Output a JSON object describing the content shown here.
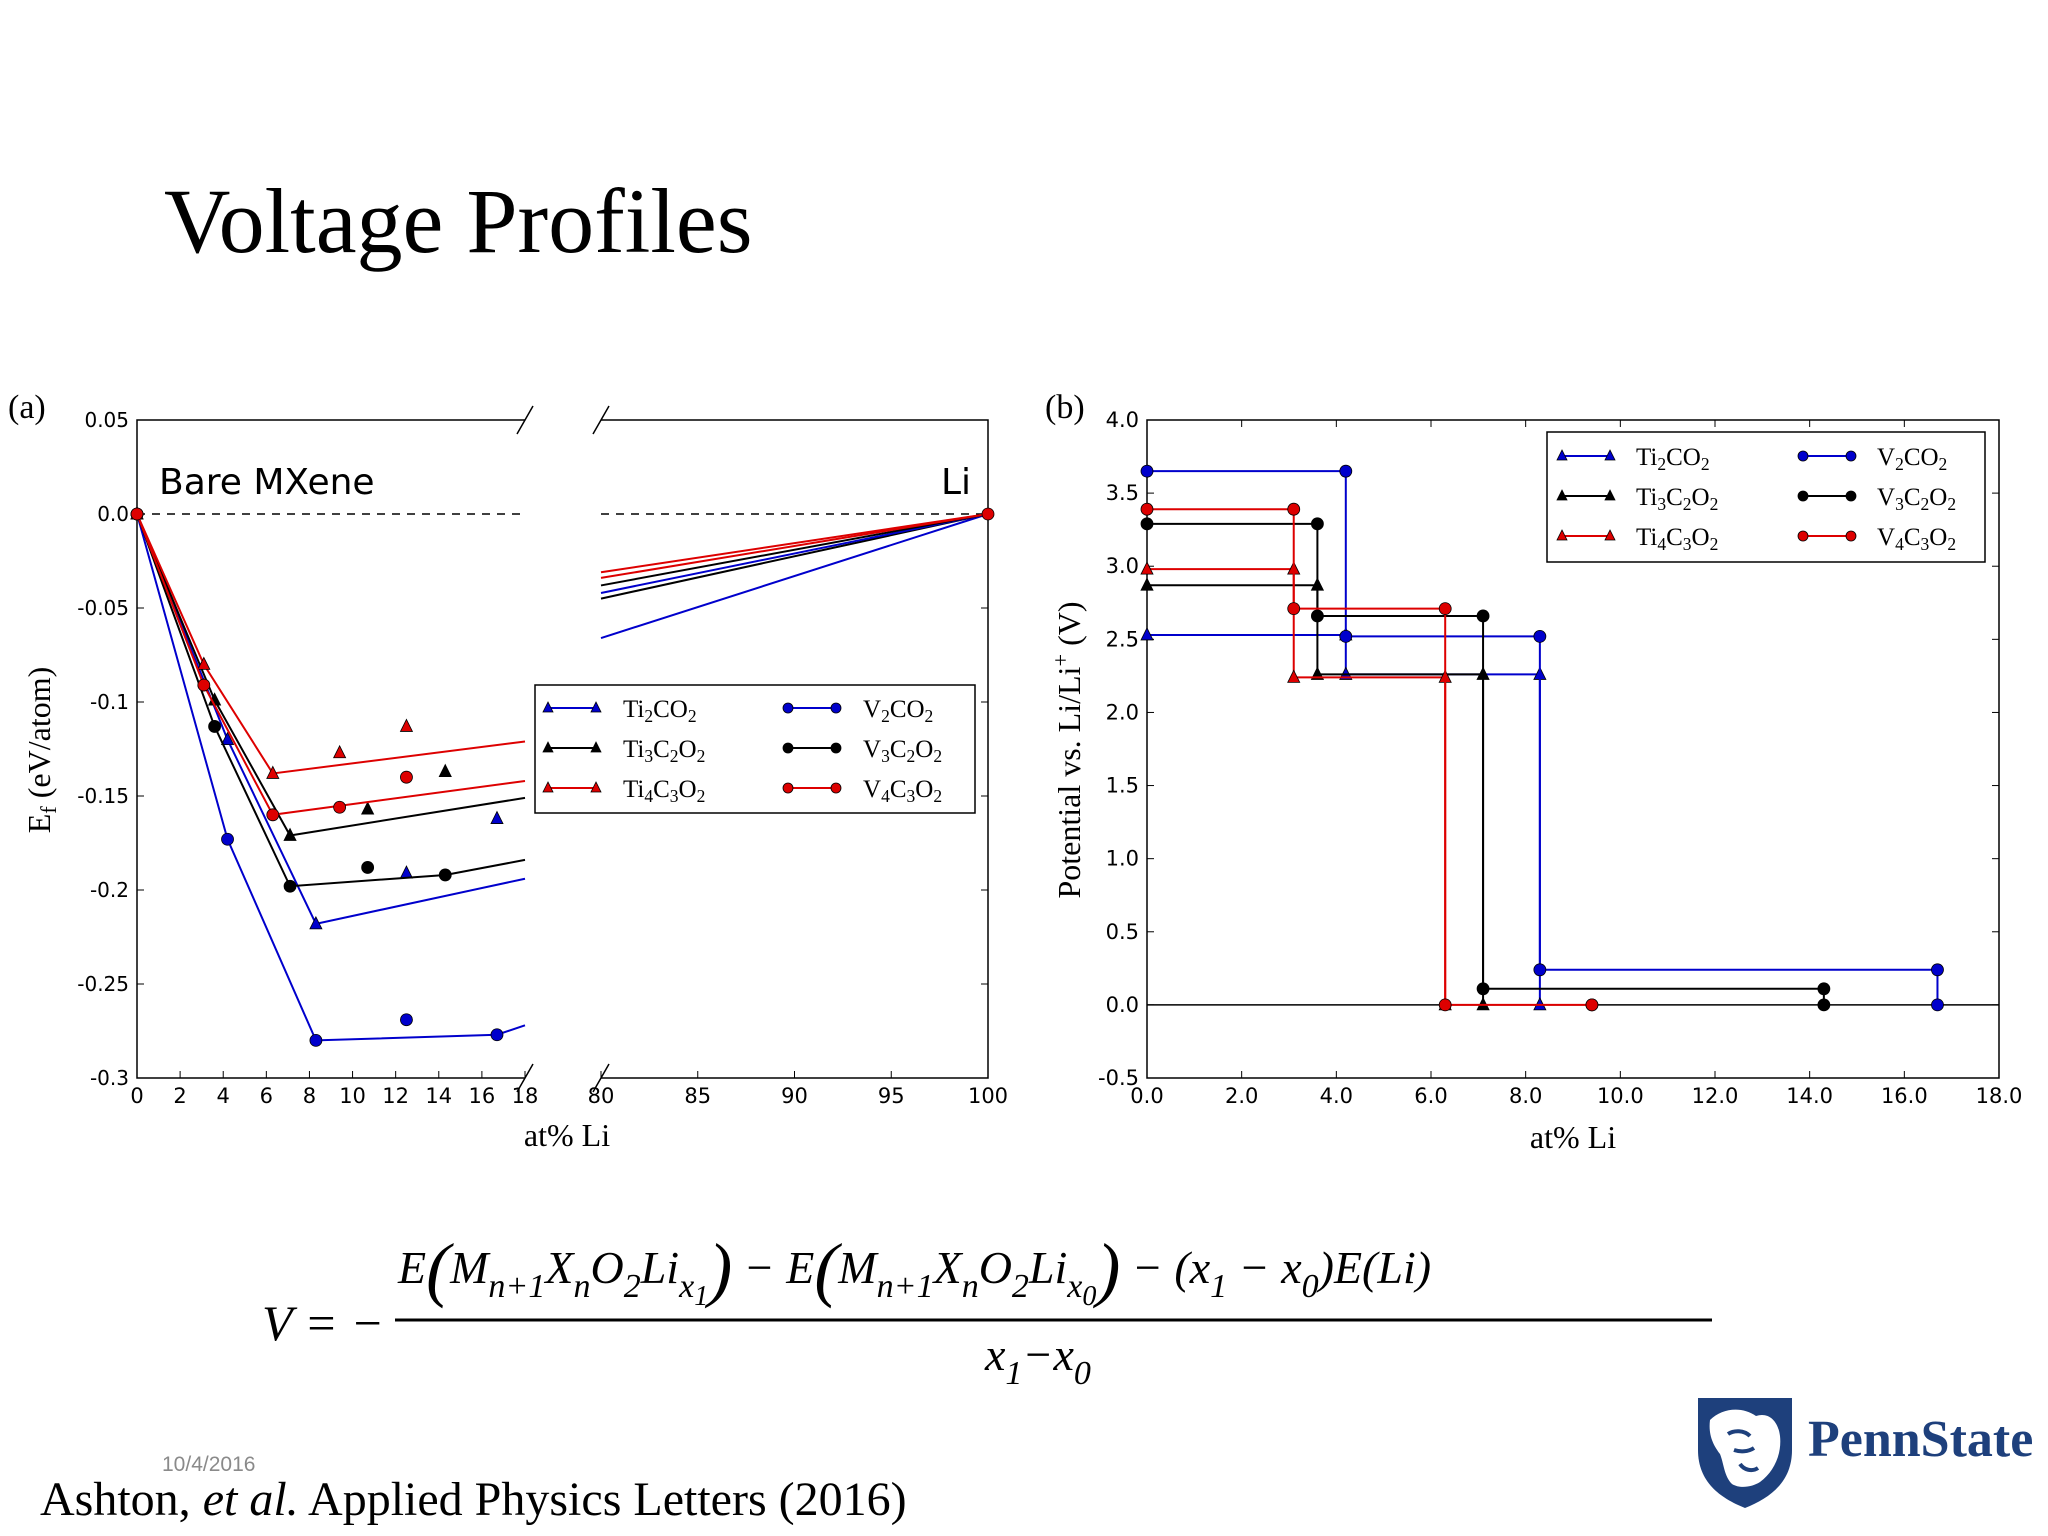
{
  "slide": {
    "title": "Voltage Profiles",
    "date": "10/4/2016",
    "citation": {
      "authors": "Ashton,",
      "etal": "et al.",
      "journal": "Applied Physics Letters (2016)"
    },
    "logo_text": "PennState",
    "formula": {
      "lhs": "V = −",
      "numerator": "E(Mn+1XnO2Lix1) − E(Mn+1XnO2Lix0) − (x1 − x0)E(Li)",
      "denominator": "x1−x0"
    }
  },
  "colors": {
    "blue": "#0000cc",
    "black": "#000000",
    "red": "#dd0000"
  },
  "chart_data": [
    {
      "panel": "(a)",
      "type": "scatter",
      "xlabel": "at% Li",
      "ylabel": "Ef (eV/atom)",
      "ylim": [
        -0.3,
        0.05
      ],
      "yticks": [
        "0.05",
        "0.0",
        "-0.05",
        "-0.1",
        "-0.15",
        "-0.2",
        "-0.25",
        "-0.3"
      ],
      "yticks_values": [
        0.05,
        0.0,
        -0.05,
        -0.1,
        -0.15,
        -0.2,
        -0.25,
        -0.3
      ],
      "broken_x_axis": {
        "left": [
          0,
          18
        ],
        "right": [
          80,
          100
        ]
      },
      "xticks_left": [
        0,
        2,
        4,
        6,
        8,
        10,
        12,
        14,
        16,
        18
      ],
      "xticks_right": [
        80,
        85,
        90,
        95,
        100
      ],
      "annotations": [
        "Bare MXene",
        "Li"
      ],
      "legend_placement": "center-right",
      "series": [
        {
          "name": "Ti2CO2",
          "label_html": "Ti<tspan font-size='70%' dy='5'>2</tspan><tspan dy='-5'>CO</tspan><tspan font-size='70%' dy='5'>2</tspan>",
          "color": "blue",
          "marker": "triangle",
          "hull": [
            [
              0,
              0
            ],
            [
              4.2,
              -0.12
            ],
            [
              8.3,
              -0.218
            ],
            [
              18,
              -0.194
            ]
          ],
          "points": [
            [
              0,
              0
            ],
            [
              4.2,
              -0.12
            ],
            [
              8.3,
              -0.218
            ],
            [
              12.5,
              -0.191
            ],
            [
              16.7,
              -0.162
            ]
          ],
          "li_line": [
            [
              80,
              -0.066
            ],
            [
              100,
              0
            ]
          ]
        },
        {
          "name": "Ti3C2O2",
          "label_html": "Ti<tspan font-size='70%' dy='5'>3</tspan><tspan dy='-5'>C</tspan><tspan font-size='70%' dy='5'>2</tspan><tspan dy='-5'>O</tspan><tspan font-size='70%' dy='5'>2</tspan>",
          "color": "black",
          "marker": "triangle",
          "hull": [
            [
              0,
              0
            ],
            [
              3.6,
              -0.099
            ],
            [
              7.1,
              -0.171
            ],
            [
              18,
              -0.151
            ]
          ],
          "points": [
            [
              0,
              0
            ],
            [
              3.6,
              -0.099
            ],
            [
              7.1,
              -0.171
            ],
            [
              10.7,
              -0.157
            ],
            [
              14.3,
              -0.137
            ]
          ],
          "li_line": [
            [
              80,
              -0.045
            ],
            [
              100,
              0
            ]
          ]
        },
        {
          "name": "Ti4C3O2",
          "label_html": "Ti<tspan font-size='70%' dy='5'>4</tspan><tspan dy='-5'>C</tspan><tspan font-size='70%' dy='5'>3</tspan><tspan dy='-5'>O</tspan><tspan font-size='70%' dy='5'>2</tspan>",
          "color": "red",
          "marker": "triangle",
          "hull": [
            [
              0,
              0
            ],
            [
              3.1,
              -0.08
            ],
            [
              6.3,
              -0.138
            ],
            [
              18,
              -0.121
            ]
          ],
          "points": [
            [
              0,
              0
            ],
            [
              3.1,
              -0.08
            ],
            [
              6.3,
              -0.138
            ],
            [
              9.4,
              -0.127
            ],
            [
              12.5,
              -0.113
            ]
          ],
          "li_line": [
            [
              80,
              -0.031
            ],
            [
              100,
              0
            ]
          ]
        },
        {
          "name": "V2CO2",
          "label_html": "V<tspan font-size='70%' dy='5'>2</tspan><tspan dy='-5'>CO</tspan><tspan font-size='70%' dy='5'>2</tspan>",
          "color": "blue",
          "marker": "circle",
          "hull": [
            [
              0,
              0
            ],
            [
              4.2,
              -0.173
            ],
            [
              8.3,
              -0.28
            ],
            [
              16.7,
              -0.277
            ],
            [
              18,
              -0.272
            ]
          ],
          "points": [
            [
              0,
              0
            ],
            [
              4.2,
              -0.173
            ],
            [
              8.3,
              -0.28
            ],
            [
              12.5,
              -0.269
            ],
            [
              16.7,
              -0.277
            ]
          ],
          "li_line": [
            [
              80,
              -0.042
            ],
            [
              100,
              0
            ]
          ]
        },
        {
          "name": "V3C2O2",
          "label_html": "V<tspan font-size='70%' dy='5'>3</tspan><tspan dy='-5'>C</tspan><tspan font-size='70%' dy='5'>2</tspan><tspan dy='-5'>O</tspan><tspan font-size='70%' dy='5'>2</tspan>",
          "color": "black",
          "marker": "circle",
          "hull": [
            [
              0,
              0
            ],
            [
              3.6,
              -0.113
            ],
            [
              7.1,
              -0.198
            ],
            [
              14.3,
              -0.192
            ],
            [
              18,
              -0.184
            ]
          ],
          "points": [
            [
              0,
              0
            ],
            [
              3.6,
              -0.113
            ],
            [
              7.1,
              -0.198
            ],
            [
              10.7,
              -0.188
            ],
            [
              14.3,
              -0.192
            ]
          ],
          "li_line": [
            [
              80,
              -0.038
            ],
            [
              100,
              0
            ]
          ]
        },
        {
          "name": "V4C3O2",
          "label_html": "V<tspan font-size='70%' dy='5'>4</tspan><tspan dy='-5'>C</tspan><tspan font-size='70%' dy='5'>3</tspan><tspan dy='-5'>O</tspan><tspan font-size='70%' dy='5'>2</tspan>",
          "color": "red",
          "marker": "circle",
          "hull": [
            [
              0,
              0
            ],
            [
              3.1,
              -0.091
            ],
            [
              6.3,
              -0.16
            ],
            [
              18,
              -0.142
            ]
          ],
          "points": [
            [
              0,
              0
            ],
            [
              3.1,
              -0.091
            ],
            [
              6.3,
              -0.16
            ],
            [
              9.4,
              -0.156
            ],
            [
              12.5,
              -0.14
            ]
          ],
          "li_line": [
            [
              80,
              -0.034
            ],
            [
              100,
              0
            ]
          ]
        }
      ]
    },
    {
      "panel": "(b)",
      "type": "line",
      "xlabel": "at% Li",
      "ylabel": "Potential vs. Li/Li+ (V)",
      "xlim": [
        0,
        18
      ],
      "ylim": [
        -0.5,
        4.0
      ],
      "xticks": [
        "0.0",
        "2.0",
        "4.0",
        "6.0",
        "8.0",
        "10.0",
        "12.0",
        "14.0",
        "16.0",
        "18.0"
      ],
      "xticks_values": [
        0,
        2,
        4,
        6,
        8,
        10,
        12,
        14,
        16,
        18
      ],
      "yticks": [
        "4.0",
        "3.5",
        "3.0",
        "2.5",
        "2.0",
        "1.5",
        "1.0",
        "0.5",
        "0.0",
        "-0.5"
      ],
      "yticks_values": [
        4.0,
        3.5,
        3.0,
        2.5,
        2.0,
        1.5,
        1.0,
        0.5,
        0.0,
        -0.5
      ],
      "legend_placement": "top-right",
      "series": [
        {
          "name": "Ti2CO2",
          "color": "blue",
          "marker": "triangle",
          "steps": [
            [
              0,
              4.2,
              2.53
            ],
            [
              4.2,
              8.3,
              2.26
            ],
            [
              8.3,
              null,
              0
            ]
          ]
        },
        {
          "name": "Ti3C2O2",
          "color": "black",
          "marker": "triangle",
          "steps": [
            [
              0,
              3.6,
              2.87
            ],
            [
              3.6,
              7.1,
              2.26
            ],
            [
              7.1,
              null,
              0
            ]
          ]
        },
        {
          "name": "Ti4C3O2",
          "color": "red",
          "marker": "triangle",
          "steps": [
            [
              0,
              3.1,
              2.98
            ],
            [
              3.1,
              6.3,
              2.24
            ],
            [
              6.3,
              null,
              0
            ]
          ]
        },
        {
          "name": "V2CO2",
          "color": "blue",
          "marker": "circle",
          "steps": [
            [
              0,
              4.2,
              3.65
            ],
            [
              4.2,
              8.3,
              2.52
            ],
            [
              8.3,
              16.7,
              0.24
            ],
            [
              16.7,
              null,
              0
            ]
          ]
        },
        {
          "name": "V3C2O2",
          "color": "black",
          "marker": "circle",
          "steps": [
            [
              0,
              3.6,
              3.29
            ],
            [
              3.6,
              7.1,
              2.66
            ],
            [
              7.1,
              14.3,
              0.11
            ],
            [
              14.3,
              null,
              0
            ]
          ]
        },
        {
          "name": "V4C3O2",
          "color": "red",
          "marker": "circle",
          "steps": [
            [
              0,
              3.1,
              3.39
            ],
            [
              3.1,
              6.3,
              2.71
            ],
            [
              6.3,
              9.4,
              0
            ],
            [
              9.4,
              null,
              0
            ]
          ]
        }
      ]
    }
  ]
}
